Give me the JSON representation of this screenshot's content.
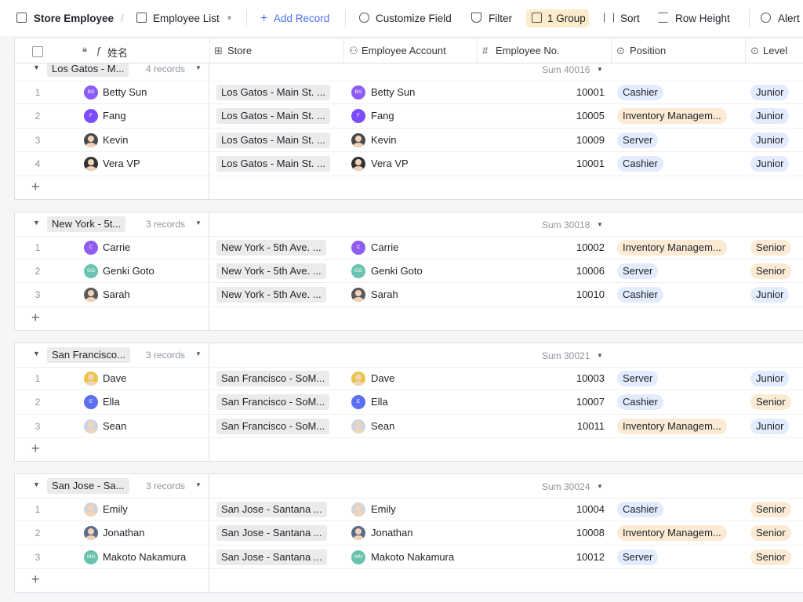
{
  "toolbar": {
    "base": "Store Employee",
    "view": "Employee List",
    "add": "Add Record",
    "customize": "Customize Field",
    "filter": "Filter",
    "group": "1 Group",
    "sort": "Sort",
    "row_height": "Row Height",
    "alert": "Alert"
  },
  "columns": [
    "姓名",
    "Store",
    "Employee Account",
    "Employee No.",
    "Position",
    "Level"
  ],
  "groups": [
    {
      "label": "Los Gatos - M...",
      "count": "4 records",
      "sum": "Sum 40016",
      "rows": [
        {
          "index": 1,
          "name": "Betty Sun",
          "avatar": "BS",
          "avatar_color": "#8b5cf6",
          "store": "Los Gatos - Main St. ...",
          "employee_no": 10001,
          "position": {
            "text": "Cashier",
            "color": "#e2ecfc"
          },
          "level": {
            "text": "Junior",
            "color": "#e2ecfc"
          }
        },
        {
          "index": 2,
          "name": "Fang",
          "avatar": "F",
          "avatar_color": "#7c4dff",
          "store": "Los Gatos - Main St. ...",
          "employee_no": 10005,
          "position": {
            "text": "Inventory Managem...",
            "color": "#fcebd4"
          },
          "level": {
            "text": "Junior",
            "color": "#e2ecfc"
          }
        },
        {
          "index": 3,
          "name": "Kevin",
          "avatar_color": "#4a4a4a",
          "store": "Los Gatos - Main St. ...",
          "employee_no": 10009,
          "position": {
            "text": "Server",
            "color": "#e2ecfc"
          },
          "level": {
            "text": "Junior",
            "color": "#e2ecfc"
          }
        },
        {
          "index": 4,
          "name": "Vera VP",
          "avatar_color": "#333333",
          "store": "Los Gatos - Main St. ...",
          "employee_no": 10001,
          "position": {
            "text": "Cashier",
            "color": "#e2ecfc"
          },
          "level": {
            "text": "Junior",
            "color": "#e2ecfc"
          }
        }
      ]
    },
    {
      "label": "New York - 5t...",
      "count": "3 records",
      "sum": "Sum 30018",
      "rows": [
        {
          "index": 1,
          "name": "Carrie",
          "avatar": "C",
          "avatar_color": "#8e5cf0",
          "store": "New York - 5th Ave. ...",
          "employee_no": 10002,
          "position": {
            "text": "Inventory Managem...",
            "color": "#fcebd4"
          },
          "level": {
            "text": "Senior",
            "color": "#fcebd4"
          }
        },
        {
          "index": 2,
          "name": "Genki Goto",
          "avatar": "GG",
          "avatar_color": "#6cc3b0",
          "store": "New York - 5th Ave. ...",
          "employee_no": 10006,
          "position": {
            "text": "Server",
            "color": "#e2ecfc"
          },
          "level": {
            "text": "Senior",
            "color": "#fcebd4"
          }
        },
        {
          "index": 3,
          "name": "Sarah",
          "avatar_color": "#5a5a5a",
          "store": "New York - 5th Ave. ...",
          "employee_no": 10010,
          "position": {
            "text": "Cashier",
            "color": "#e2ecfc"
          },
          "level": {
            "text": "Junior",
            "color": "#e2ecfc"
          }
        }
      ]
    },
    {
      "label": "San Francisco...",
      "count": "3 records",
      "sum": "Sum 30021",
      "rows": [
        {
          "index": 1,
          "name": "Dave",
          "avatar_color": "#e8c547",
          "store": "San Francisco - SoM...",
          "employee_no": 10003,
          "position": {
            "text": "Server",
            "color": "#e2ecfc"
          },
          "level": {
            "text": "Junior",
            "color": "#e2ecfc"
          }
        },
        {
          "index": 2,
          "name": "Ella",
          "avatar": "E",
          "avatar_color": "#5b6ff0",
          "store": "San Francisco - SoM...",
          "employee_no": 10007,
          "position": {
            "text": "Cashier",
            "color": "#e2ecfc"
          },
          "level": {
            "text": "Senior",
            "color": "#fcebd4"
          }
        },
        {
          "index": 3,
          "name": "Sean",
          "avatar_color": "#cbd5e1",
          "store": "San Francisco - SoM...",
          "employee_no": 10011,
          "position": {
            "text": "Inventory Managem...",
            "color": "#fcebd4"
          },
          "level": {
            "text": "Junior",
            "color": "#e2ecfc"
          }
        }
      ]
    },
    {
      "label": "San Jose - Sa...",
      "count": "3 records",
      "sum": "Sum 30024",
      "rows": [
        {
          "index": 1,
          "name": "Emily",
          "avatar_color": "#d4d4d4",
          "store": "San Jose - Santana ...",
          "employee_no": 10004,
          "position": {
            "text": "Cashier",
            "color": "#e2ecfc"
          },
          "level": {
            "text": "Senior",
            "color": "#fcebd4"
          }
        },
        {
          "index": 2,
          "name": "Jonathan",
          "avatar_color": "#5a6b8a",
          "store": "San Jose - Santana ...",
          "employee_no": 10008,
          "position": {
            "text": "Inventory Managem...",
            "color": "#fcebd4"
          },
          "level": {
            "text": "Senior",
            "color": "#fcebd4"
          }
        },
        {
          "index": 3,
          "name": "Makoto Nakamura",
          "avatar": "MN",
          "avatar_color": "#69c2ae",
          "store": "San Jose - Santana ...",
          "employee_no": 10012,
          "position": {
            "text": "Server",
            "color": "#e2ecfc"
          },
          "level": {
            "text": "Senior",
            "color": "#fcebd4"
          }
        }
      ]
    }
  ]
}
